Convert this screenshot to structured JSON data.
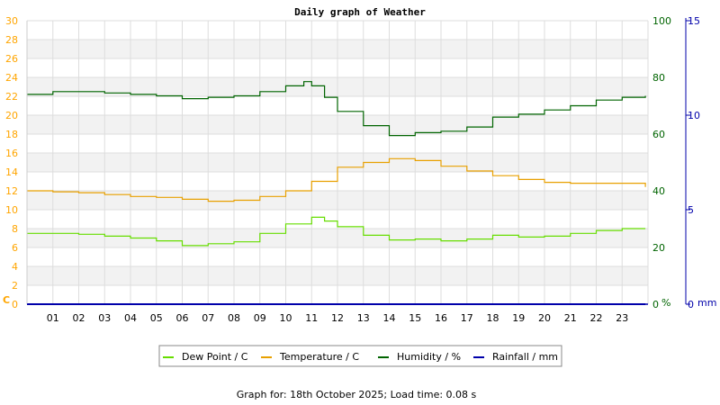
{
  "chart_data": {
    "type": "line",
    "title": "Daily graph of Weather",
    "footer": "Graph for: 18th October 2025; Load time: 0.08 s",
    "x_tick_labels": [
      "01",
      "02",
      "03",
      "04",
      "05",
      "06",
      "07",
      "08",
      "09",
      "10",
      "11",
      "12",
      "13",
      "14",
      "15",
      "16",
      "17",
      "18",
      "19",
      "20",
      "21",
      "22",
      "23"
    ],
    "x_range_hours": [
      0,
      24
    ],
    "left_axis": {
      "unit": "C",
      "min": 0,
      "max": 30,
      "step": 2,
      "color": "#FFA500"
    },
    "right_axis_humidity": {
      "unit": "%",
      "min": 0,
      "max": 100,
      "step": 20,
      "color": "#006400"
    },
    "right_axis_rain": {
      "unit": "mm",
      "min": 0,
      "max": 15,
      "step": 5,
      "color": "#0000AA"
    },
    "grid": true,
    "legend_position": "bottom-center",
    "series": [
      {
        "name": "Dew Point / C",
        "color": "#66DD00",
        "axis": "left",
        "points": [
          [
            0,
            7.5
          ],
          [
            1,
            7.5
          ],
          [
            2,
            7.4
          ],
          [
            3,
            7.2
          ],
          [
            4,
            7.0
          ],
          [
            5,
            6.7
          ],
          [
            6,
            6.2
          ],
          [
            7,
            6.4
          ],
          [
            8,
            6.6
          ],
          [
            9,
            7.5
          ],
          [
            10,
            8.5
          ],
          [
            11,
            9.2
          ],
          [
            11.5,
            8.8
          ],
          [
            12,
            8.2
          ],
          [
            13,
            7.3
          ],
          [
            14,
            6.8
          ],
          [
            15,
            6.9
          ],
          [
            16,
            6.7
          ],
          [
            17,
            6.9
          ],
          [
            18,
            7.3
          ],
          [
            19,
            7.1
          ],
          [
            20,
            7.2
          ],
          [
            21,
            7.5
          ],
          [
            22,
            7.8
          ],
          [
            23,
            8.0
          ],
          [
            23.9,
            8.0
          ]
        ]
      },
      {
        "name": "Temperature / C",
        "color": "#E8A000",
        "axis": "left",
        "points": [
          [
            0,
            12.0
          ],
          [
            1,
            11.9
          ],
          [
            2,
            11.8
          ],
          [
            3,
            11.6
          ],
          [
            4,
            11.4
          ],
          [
            5,
            11.3
          ],
          [
            6,
            11.1
          ],
          [
            7,
            10.9
          ],
          [
            8,
            11.0
          ],
          [
            9,
            11.4
          ],
          [
            10,
            12.0
          ],
          [
            11,
            13.0
          ],
          [
            12,
            14.5
          ],
          [
            13,
            15.0
          ],
          [
            14,
            15.4
          ],
          [
            15,
            15.2
          ],
          [
            16,
            14.6
          ],
          [
            17,
            14.1
          ],
          [
            18,
            13.6
          ],
          [
            19,
            13.2
          ],
          [
            20,
            12.9
          ],
          [
            21,
            12.8
          ],
          [
            22,
            12.8
          ],
          [
            23,
            12.8
          ],
          [
            23.9,
            12.4
          ]
        ]
      },
      {
        "name": "Humidity / %",
        "color": "#006400",
        "axis": "right_humidity",
        "points": [
          [
            0,
            74
          ],
          [
            1,
            75
          ],
          [
            2,
            75
          ],
          [
            3,
            74.5
          ],
          [
            4,
            74
          ],
          [
            5,
            73.5
          ],
          [
            6,
            72.5
          ],
          [
            7,
            73
          ],
          [
            8,
            73.5
          ],
          [
            9,
            75
          ],
          [
            10,
            77
          ],
          [
            10.7,
            78.5
          ],
          [
            11,
            77
          ],
          [
            11.5,
            73
          ],
          [
            12,
            68
          ],
          [
            13,
            63
          ],
          [
            14,
            59.5
          ],
          [
            15,
            60.5
          ],
          [
            16,
            61
          ],
          [
            17,
            62.5
          ],
          [
            18,
            66
          ],
          [
            19,
            67
          ],
          [
            20,
            68.5
          ],
          [
            21,
            70
          ],
          [
            22,
            72
          ],
          [
            23,
            73
          ],
          [
            23.9,
            73.5
          ]
        ]
      },
      {
        "name": "Rainfall / mm",
        "color": "#0000AA",
        "axis": "right_rain",
        "points": [
          [
            0,
            0
          ],
          [
            23.9,
            0
          ]
        ]
      }
    ]
  }
}
